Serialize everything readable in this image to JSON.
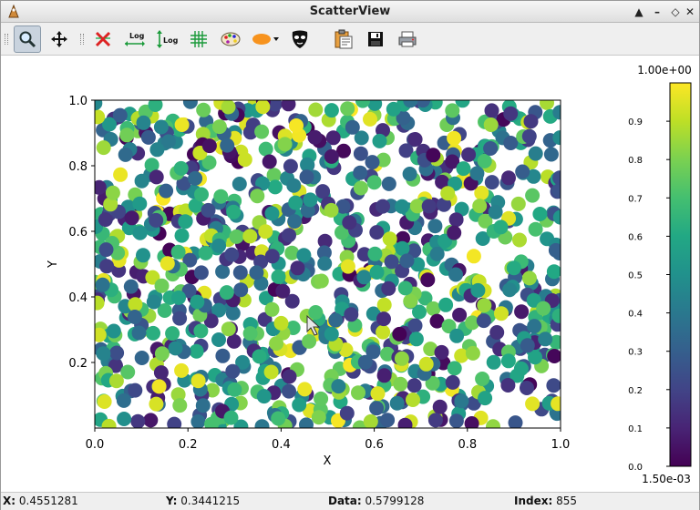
{
  "window": {
    "title": "ScatterView"
  },
  "toolbar": {
    "buttons": [
      {
        "name": "zoom-button",
        "icon": "magnifier-icon"
      },
      {
        "name": "pan-button",
        "icon": "move-arrows-icon"
      },
      {
        "name": "reset-button",
        "icon": "red-x-icon"
      },
      {
        "name": "x-log-button",
        "icon": "x-log-icon",
        "label": "Log"
      },
      {
        "name": "y-log-button",
        "icon": "y-log-icon",
        "label": "Log"
      },
      {
        "name": "grid-button",
        "icon": "grid-icon"
      },
      {
        "name": "colormap-button",
        "icon": "palette-icon"
      },
      {
        "name": "symbol-button",
        "icon": "ellipse-symbol-icon"
      },
      {
        "name": "mask-button",
        "icon": "mask-icon"
      },
      {
        "name": "copy-button",
        "icon": "clipboard-icon"
      },
      {
        "name": "save-button",
        "icon": "floppy-icon"
      },
      {
        "name": "print-button",
        "icon": "printer-icon"
      }
    ]
  },
  "chart_data": {
    "type": "scatter",
    "title": "",
    "xlabel": "X",
    "ylabel": "Y",
    "xlim": [
      0.0,
      1.0
    ],
    "ylim": [
      0.0,
      1.0
    ],
    "xticks": [
      "0.0",
      "0.2",
      "0.4",
      "0.6",
      "0.8",
      "1.0"
    ],
    "yticks": [
      "0.2",
      "0.4",
      "0.6",
      "0.8",
      "1.0"
    ],
    "point_count": 1000,
    "colormap": "viridis",
    "colorbar": {
      "max_label": "1.00e+00",
      "min_label": "1.50e-03",
      "ticks": [
        "0.0",
        "0.1",
        "0.2",
        "0.3",
        "0.4",
        "0.5",
        "0.6",
        "0.7",
        "0.8",
        "0.9"
      ]
    },
    "colors": {
      "viridis": [
        "#440154",
        "#482475",
        "#414487",
        "#355f8d",
        "#2a788e",
        "#21918c",
        "#22a884",
        "#44bf70",
        "#7ad151",
        "#bddf26",
        "#fde725"
      ]
    }
  },
  "status": {
    "x_label": "X:",
    "x_value": "0.4551281",
    "y_label": "Y:",
    "y_value": "0.3441215",
    "data_label": "Data:",
    "data_value": "0.5799128",
    "index_label": "Index:",
    "index_value": "855"
  }
}
